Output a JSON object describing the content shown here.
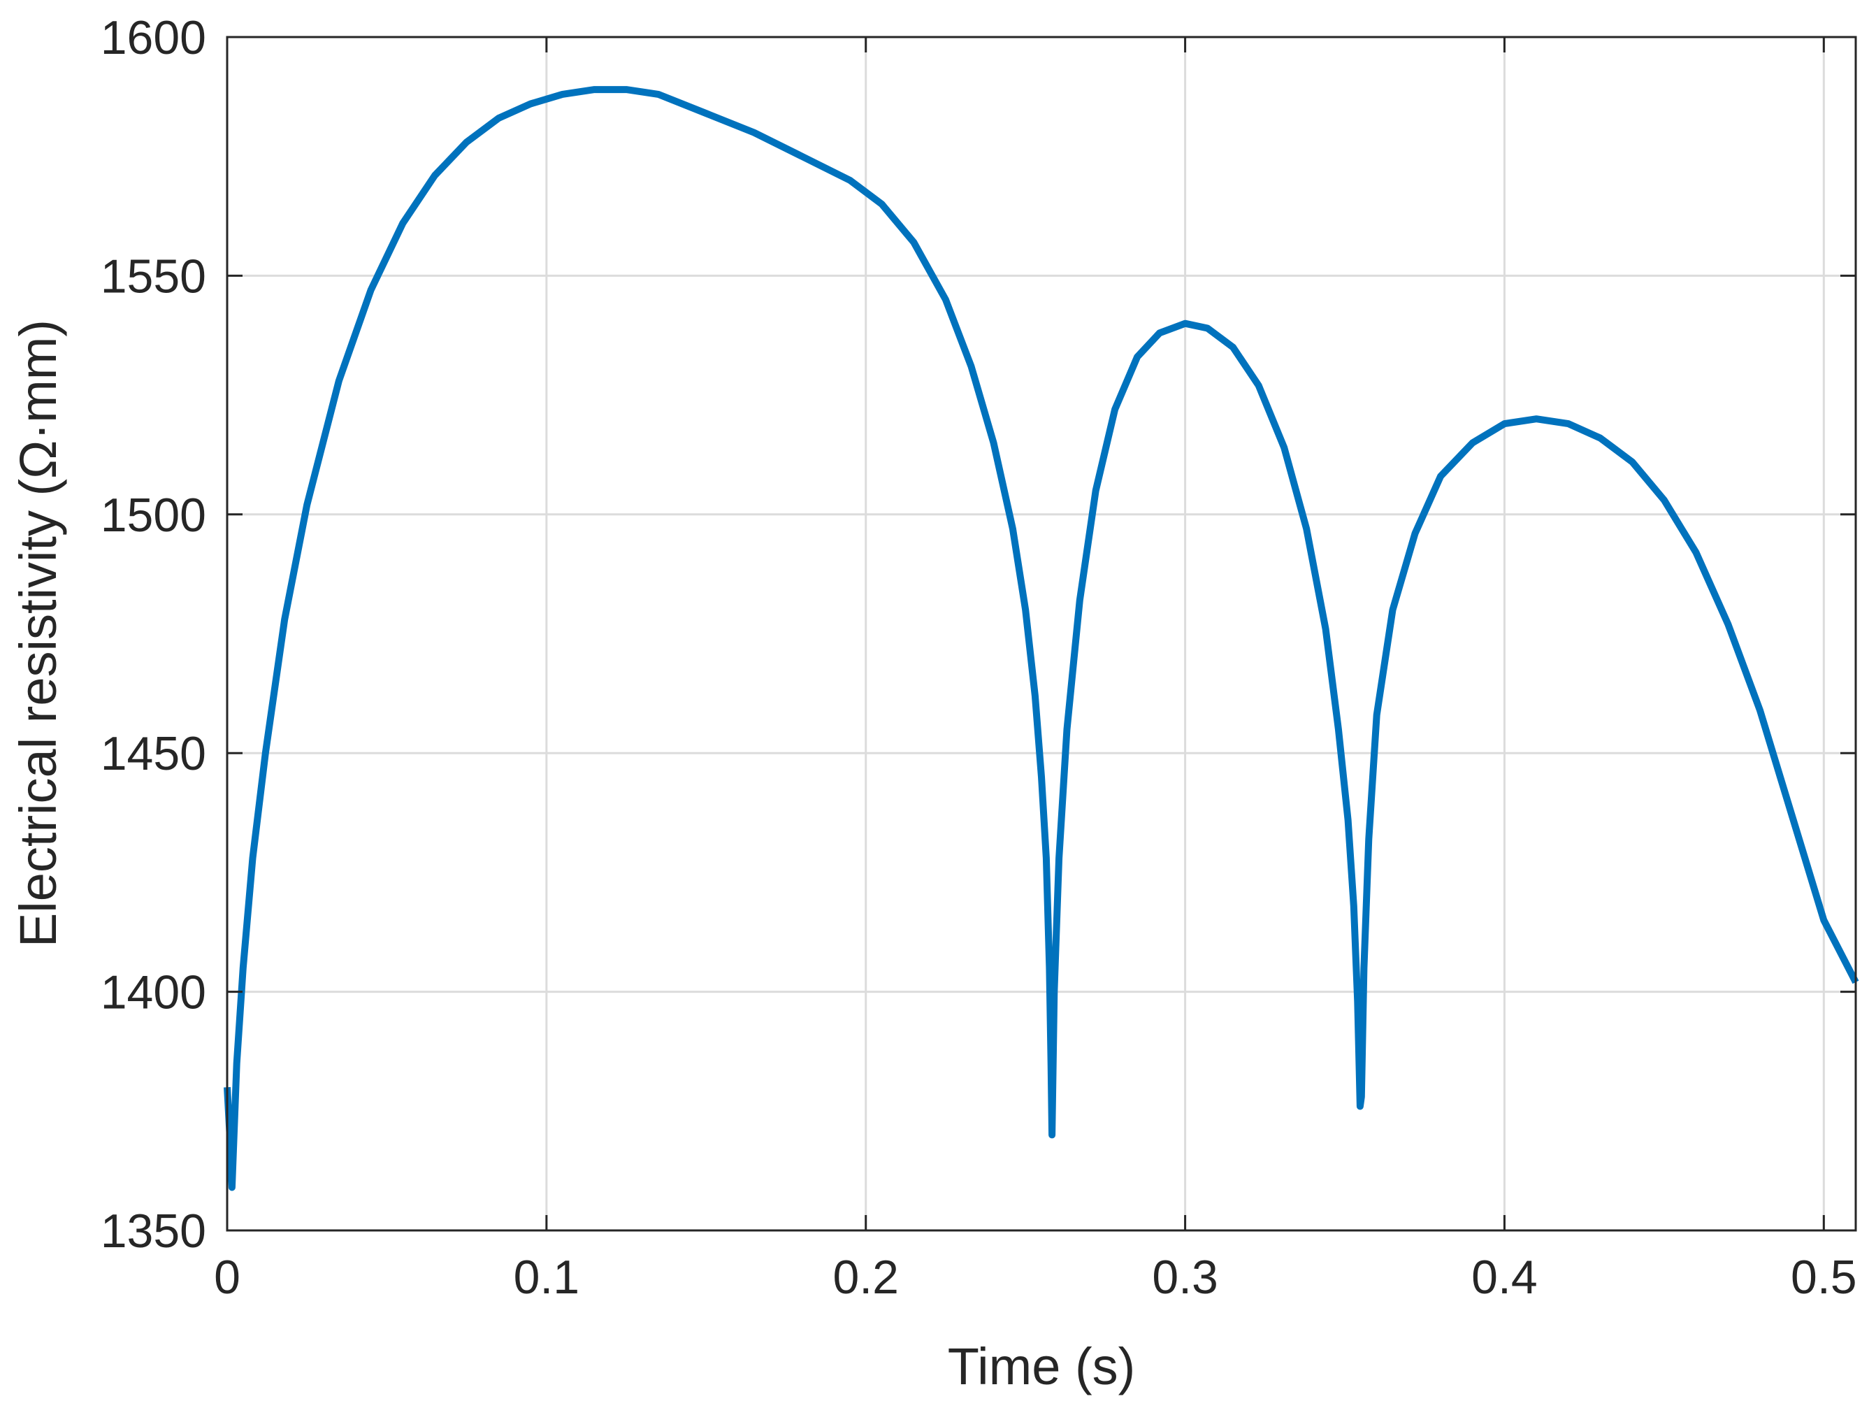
{
  "chart_data": {
    "type": "line",
    "title": "",
    "xlabel": "Time (s)",
    "ylabel": "Electrical resistivity (Ω·mm)",
    "xlim": [
      0,
      0.51
    ],
    "ylim": [
      1350,
      1600
    ],
    "xticks": [
      0,
      0.1,
      0.2,
      0.3,
      0.4,
      0.5
    ],
    "xtick_labels": [
      "0",
      "0.1",
      "0.2",
      "0.3",
      "0.4",
      "0.5"
    ],
    "yticks": [
      1350,
      1400,
      1450,
      1500,
      1550,
      1600
    ],
    "ytick_labels": [
      "1350",
      "1400",
      "1450",
      "1500",
      "1550",
      "1600"
    ],
    "grid": true,
    "legend": "none",
    "series_color": "#0072BD",
    "series": [
      {
        "x": [
          0,
          0.0008,
          0.0015,
          0.003,
          0.005,
          0.008,
          0.012,
          0.018,
          0.025,
          0.035,
          0.045,
          0.055,
          0.065,
          0.075,
          0.085,
          0.095,
          0.105,
          0.115,
          0.125,
          0.135,
          0.15,
          0.165,
          0.18,
          0.195,
          0.205,
          0.215,
          0.225,
          0.233,
          0.24,
          0.246,
          0.25,
          0.253,
          0.255,
          0.2565,
          0.2575,
          0.258,
          0.2583,
          0.259,
          0.2605,
          0.263,
          0.267,
          0.272,
          0.278,
          0.285,
          0.292,
          0.3,
          0.307,
          0.315,
          0.323,
          0.331,
          0.338,
          0.344,
          0.348,
          0.351,
          0.3528,
          0.354,
          0.3548,
          0.3552,
          0.356,
          0.3575,
          0.36,
          0.365,
          0.372,
          0.38,
          0.39,
          0.4,
          0.41,
          0.42,
          0.43,
          0.44,
          0.45,
          0.46,
          0.47,
          0.48,
          0.49,
          0.5,
          0.51
        ],
        "y": [
          1380,
          1370,
          1359,
          1385,
          1405,
          1428,
          1450,
          1478,
          1502,
          1528,
          1547,
          1561,
          1571,
          1578,
          1583,
          1586,
          1588,
          1589,
          1589,
          1588,
          1584,
          1580,
          1575,
          1570,
          1565,
          1557,
          1545,
          1531,
          1515,
          1497,
          1480,
          1462,
          1445,
          1428,
          1405,
          1385,
          1370,
          1400,
          1428,
          1455,
          1482,
          1505,
          1522,
          1533,
          1538,
          1540,
          1539,
          1535,
          1527,
          1514,
          1497,
          1476,
          1455,
          1436,
          1418,
          1398,
          1376,
          1378,
          1405,
          1432,
          1458,
          1480,
          1496,
          1508,
          1515,
          1519,
          1520,
          1519,
          1516,
          1511,
          1503,
          1492,
          1477,
          1459,
          1437,
          1415,
          1402
        ]
      }
    ]
  }
}
